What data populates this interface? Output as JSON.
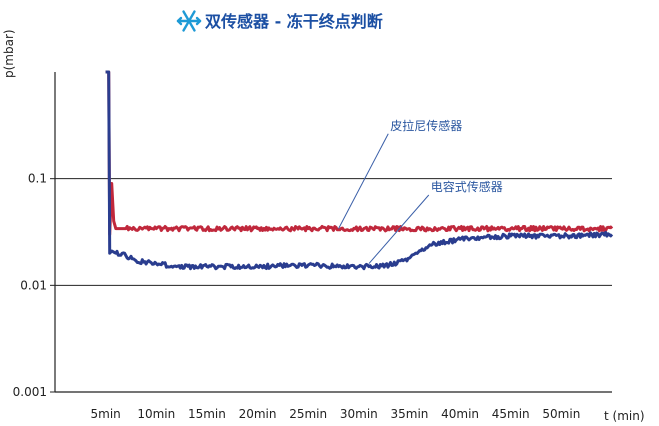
{
  "header": {
    "title": "双传感器 - 冻干终点判断",
    "icon": "snowflake-icon",
    "icon_color": "#1e9ad6",
    "title_color": "#1b4fa3"
  },
  "chart_data": {
    "type": "line",
    "ylabel": "p(mbar)",
    "xlabel": "t (min)",
    "yscale": "log",
    "ylim": [
      0.001,
      1
    ],
    "yticks": [
      0.001,
      0.01,
      0.1
    ],
    "ytick_labels": [
      "0.001",
      "0.01",
      "0.1"
    ],
    "xlim": [
      0,
      55
    ],
    "xticks": [
      5,
      10,
      15,
      20,
      25,
      30,
      35,
      40,
      45,
      50
    ],
    "xtick_labels": [
      "5min",
      "10min",
      "15min",
      "20min",
      "25min",
      "30min",
      "35min",
      "40min",
      "45min",
      "50min"
    ],
    "grid": "horizontal",
    "series": [
      {
        "name": "皮拉尼传感器",
        "color": "#c0283c",
        "x": [
          5.0,
          5.3,
          5.4,
          5.6,
          5.8,
          6.0,
          6.5,
          7,
          10,
          15,
          20,
          25,
          30,
          35,
          40,
          45,
          50,
          55
        ],
        "y": [
          1.0,
          1.0,
          0.03,
          0.09,
          0.04,
          0.034,
          0.034,
          0.034,
          0.034,
          0.034,
          0.034,
          0.034,
          0.034,
          0.034,
          0.034,
          0.034,
          0.034,
          0.034
        ]
      },
      {
        "name": "电容式传感器",
        "color": "#2a3d8f",
        "x": [
          5.0,
          5.3,
          5.4,
          5.6,
          6.0,
          7,
          8,
          10,
          12,
          15,
          20,
          25,
          28,
          30,
          31,
          33,
          35,
          37,
          40,
          42,
          45,
          50,
          55
        ],
        "y": [
          1.0,
          1.0,
          0.02,
          0.021,
          0.02,
          0.019,
          0.017,
          0.016,
          0.015,
          0.015,
          0.015,
          0.0155,
          0.015,
          0.015,
          0.015,
          0.0155,
          0.018,
          0.024,
          0.027,
          0.028,
          0.029,
          0.029,
          0.03
        ]
      }
    ],
    "annotations": [
      {
        "text": "皮拉尼传感器",
        "series": 0,
        "x": 28,
        "y": 0.034,
        "label_x": 33.5,
        "label_y": 0.3
      },
      {
        "text": "电容式传感器",
        "series": 1,
        "x": 31,
        "y": 0.016,
        "label_x": 37.5,
        "label_y": 0.08
      }
    ]
  }
}
